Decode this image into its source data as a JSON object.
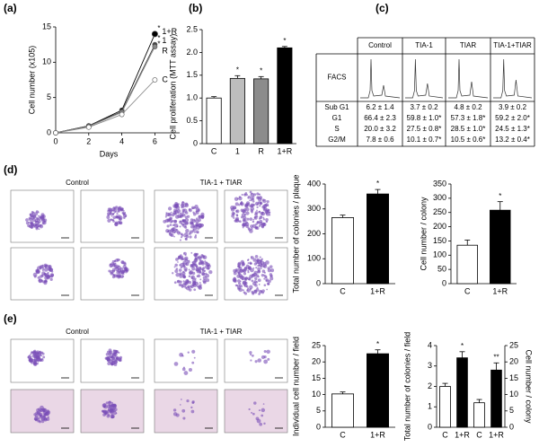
{
  "panel_labels": [
    "(a)",
    "(b)",
    "(c)",
    "(d)",
    "(e)"
  ],
  "facs": {
    "row_label": "FACS",
    "columns": [
      "Control",
      "TIA-1",
      "TIAR",
      "TIA-1+TIAR"
    ],
    "phases": [
      "Sub G1",
      "G1",
      "S",
      "G2/M"
    ],
    "values": [
      [
        "6.2 ± 1.4",
        "66.4 ± 2.3",
        "20.0 ± 3.2",
        "7.8 ± 0.6"
      ],
      [
        "3.7 ± 0.2",
        "59.8 ± 1.0*",
        "27.5 ± 0.8*",
        "10.1 ± 0.7*"
      ],
      [
        "4.8 ± 0.2",
        "57.3 ± 1.8*",
        "28.5 ± 1.0*",
        "10.5 ± 0.6*"
      ],
      [
        "3.9 ± 0.2",
        "59.2 ± 2.0*",
        "24.5 ± 1.3*",
        "13.2 ± 0.4*"
      ]
    ]
  },
  "images": {
    "d": [
      "Control",
      "TIA-1 + TIAR"
    ],
    "e": [
      "Control",
      "TIA-1 + TIAR"
    ]
  },
  "chart_data": [
    {
      "type": "line",
      "xlabel": "Days",
      "ylabel": "Cell number (x105)",
      "x": [
        0,
        2,
        4,
        6
      ],
      "xlim": [
        0,
        7.5
      ],
      "xticks": [
        0,
        2,
        4,
        6
      ],
      "ylim": [
        0,
        15
      ],
      "yticks": [
        0,
        5,
        10,
        15
      ],
      "series": [
        {
          "name": "1+R",
          "color": "#000000",
          "values": [
            0,
            1,
            3.2,
            14
          ],
          "significance": "*"
        },
        {
          "name": "1",
          "color": "#444444",
          "values": [
            0,
            1,
            3,
            12.5
          ],
          "significance": "*"
        },
        {
          "name": "R",
          "color": "#888888",
          "values": [
            0,
            0.9,
            2.9,
            12.2
          ],
          "significance": "*"
        },
        {
          "name": "C",
          "color": "#ffffff",
          "values": [
            0,
            0.8,
            2.6,
            7.5
          ]
        }
      ]
    },
    {
      "type": "bar",
      "ylabel": "Cell proliferation (MTT assay)",
      "categories": [
        "C",
        "1",
        "R",
        "1+R"
      ],
      "values": [
        1.0,
        1.43,
        1.42,
        2.1
      ],
      "errors": [
        0.03,
        0.06,
        0.05,
        0.03
      ],
      "colors": [
        "#ffffff",
        "#bdbdbd",
        "#8c8c8c",
        "#000000"
      ],
      "significance": [
        null,
        "*",
        "*",
        "*"
      ],
      "ylim": [
        0,
        2.5
      ],
      "yticks": [
        0,
        0.5,
        {
          "value": 1,
          "label": "1.0"
        },
        1.5,
        {
          "value": 2,
          "label": "2.0"
        },
        2.5
      ]
    },
    {
      "type": "bar",
      "ylabel": "Total number of colonies / plaque",
      "categories": [
        "C",
        "1+R"
      ],
      "values": [
        265,
        360
      ],
      "errors": [
        10,
        18
      ],
      "colors": [
        "#ffffff",
        "#000000"
      ],
      "significance": [
        null,
        "*"
      ],
      "ylim": [
        0,
        400
      ],
      "yticks": [
        0,
        100,
        200,
        300,
        400
      ]
    },
    {
      "type": "bar",
      "ylabel": "Cell number / colony",
      "categories": [
        "C",
        "1+R"
      ],
      "values": [
        135,
        258
      ],
      "errors": [
        18,
        30
      ],
      "colors": [
        "#ffffff",
        "#000000"
      ],
      "significance": [
        null,
        "*"
      ],
      "ylim": [
        0,
        350
      ],
      "yticks": [
        0,
        50,
        100,
        150,
        200,
        250,
        300,
        350
      ]
    },
    {
      "type": "bar",
      "ylabel": "Individual cell number / field",
      "categories": [
        "C",
        "1+R"
      ],
      "values": [
        10.2,
        22.5
      ],
      "errors": [
        0.6,
        1.2
      ],
      "colors": [
        "#ffffff",
        "#000000"
      ],
      "significance": [
        null,
        "*"
      ],
      "ylim": [
        0,
        25
      ],
      "yticks": [
        0,
        5,
        10,
        15,
        20,
        25
      ]
    },
    {
      "type": "bar",
      "ylabel": "Total number of colonies / field",
      "y2label": "Cell number / colony",
      "categories": [
        "C",
        "1+R",
        "C",
        "1+R"
      ],
      "colors": [
        "#ffffff",
        "#000000",
        "#ffffff",
        "#000000"
      ],
      "series": [
        {
          "values": [
            2.0,
            3.4,
            null,
            null
          ],
          "errors": [
            0.15,
            0.3,
            null,
            null
          ],
          "significance": [
            null,
            "*",
            null,
            null
          ]
        },
        {
          "axis": "y2",
          "values": [
            null,
            null,
            7.5,
            17.5
          ],
          "errors": [
            null,
            null,
            1.0,
            2.2
          ],
          "significance": [
            null,
            null,
            null,
            "**"
          ]
        }
      ],
      "ylim": [
        0,
        4
      ],
      "yticks": [
        0,
        1,
        2,
        3,
        4
      ],
      "y2lim": [
        0,
        25
      ],
      "y2ticks": [
        0,
        5,
        10,
        15,
        20,
        25
      ]
    }
  ]
}
